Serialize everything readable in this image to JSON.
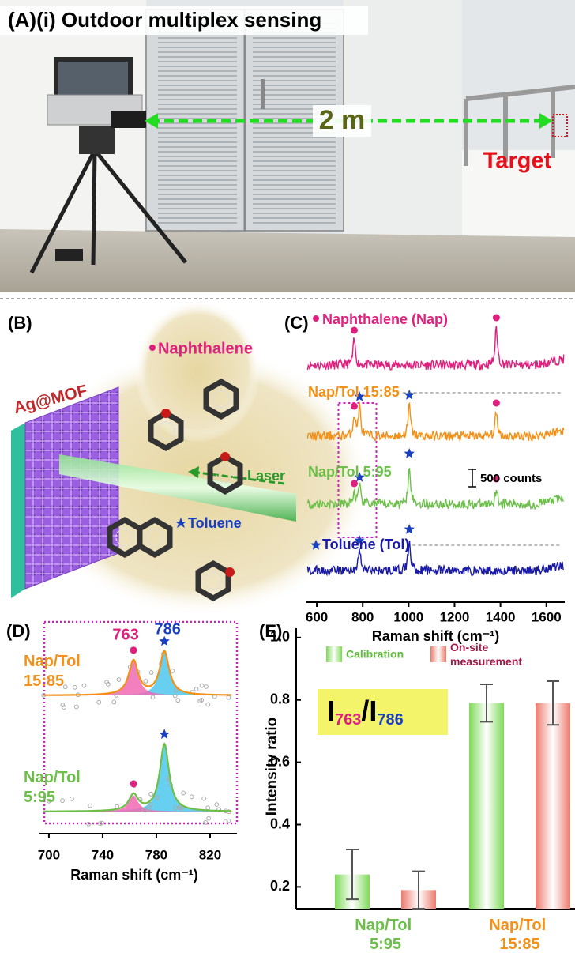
{
  "panel_a": {
    "title": "(A)(i) Outdoor multiplex sensing",
    "distance": "2 m",
    "target": "Target"
  },
  "panel_b": {
    "label": "(B)",
    "substrate": "Ag@MOF",
    "naphthalene": "Naphthalene",
    "laser": "Laser",
    "toluene": "Toluene"
  },
  "chart_data": [
    {
      "type": "spectra",
      "panel": "(C)",
      "xlabel": "Raman shift (cm⁻¹)",
      "xlim": [
        555,
        1680
      ],
      "xticks": [
        600,
        800,
        1000,
        1200,
        1400,
        1600
      ],
      "scale_bar": "500 counts",
      "series": [
        {
          "name": "Naphthalene (Nap)",
          "color": "#e0207e",
          "nap_peaks": [
            763,
            1382
          ],
          "tol_peaks": []
        },
        {
          "name": "Nap/Tol 15:85",
          "color": "#f39018",
          "nap_peaks": [
            763,
            1382
          ],
          "tol_peaks": [
            786,
            1003
          ]
        },
        {
          "name": "Nap/Tol 5:95",
          "color": "#6cc04a",
          "nap_peaks": [
            763,
            1382
          ],
          "tol_peaks": [
            786,
            1003
          ]
        },
        {
          "name": "Toluene (Tol)",
          "color": "#1a1aa8",
          "nap_peaks": [],
          "tol_peaks": [
            786,
            1003
          ]
        }
      ]
    },
    {
      "type": "fit",
      "panel": "(D)",
      "xlabel": "Raman shift (cm⁻¹)",
      "xlim": [
        693,
        840
      ],
      "xticks": [
        700,
        740,
        780,
        820
      ],
      "peaks": [
        763,
        786
      ],
      "series": [
        {
          "name": "Nap/Tol 15:85",
          "color": "#f39018"
        },
        {
          "name": "Nap/Tol 5:95",
          "color": "#6cc04a"
        }
      ]
    },
    {
      "type": "bar",
      "panel": "(E)",
      "ylabel": "Intensity ratio",
      "ratio_symbol": "I",
      "ratio_slash": "/",
      "categories": [
        "Nap/Tol 5:95",
        "Nap/Tol 15:85"
      ],
      "category_colors": [
        "#6cc04a",
        "#f39018"
      ],
      "series": [
        {
          "name": "Calibration",
          "color": "#7ed957",
          "text_color": "#5cbf3a",
          "values": [
            0.24,
            0.79
          ],
          "errors": [
            0.08,
            0.06
          ]
        },
        {
          "name": "On-site measurement",
          "color": "#ec7a6c",
          "text_color": "#a01848",
          "values": [
            0.19,
            0.79
          ],
          "errors": [
            0.06,
            0.07
          ]
        }
      ],
      "ylim": [
        0.13,
        1.03
      ],
      "yticks": [
        0.2,
        0.4,
        0.6,
        0.8,
        {
          "value": 1,
          "label": "1.0"
        }
      ]
    }
  ]
}
